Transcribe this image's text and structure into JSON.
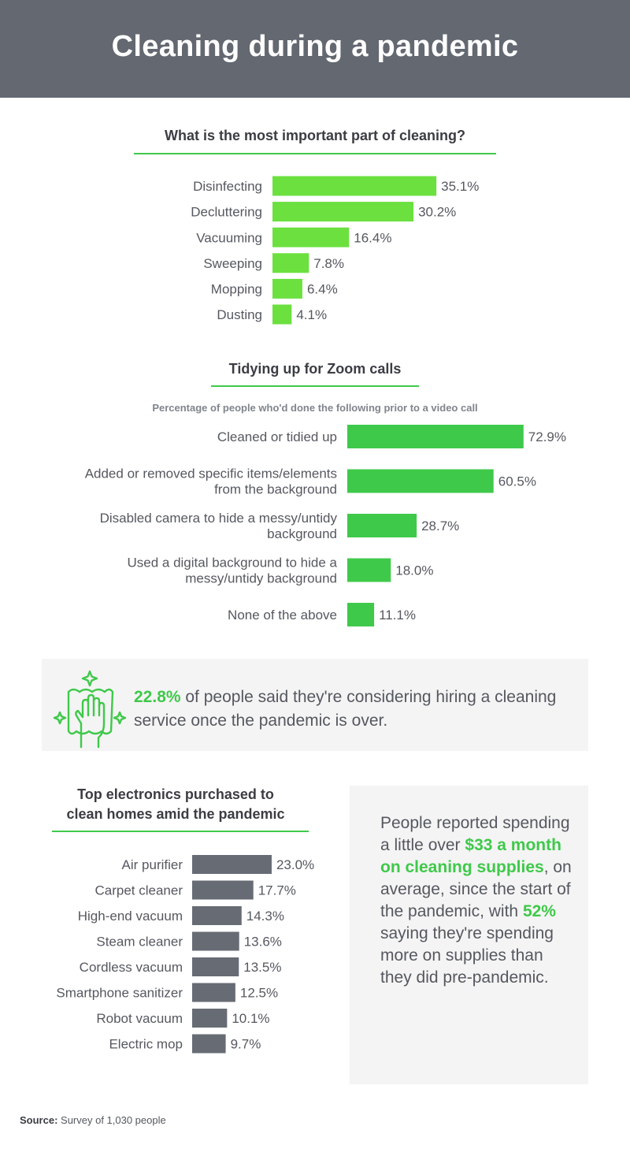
{
  "header": {
    "title": "Cleaning during a pandemic"
  },
  "chart_data": [
    {
      "type": "bar",
      "orientation": "horizontal",
      "title": "What is the most important part of cleaning?",
      "categories": [
        "Disinfecting",
        "Decluttering",
        "Vacuuming",
        "Sweeping",
        "Mopping",
        "Dusting"
      ],
      "values": [
        35.1,
        30.2,
        16.4,
        7.8,
        6.4,
        4.1
      ],
      "value_labels": [
        "35.1%",
        "30.2%",
        "16.4%",
        "7.8%",
        "6.4%",
        "4.1%"
      ],
      "unit": "%",
      "color": "#6be03f"
    },
    {
      "type": "bar",
      "orientation": "horizontal",
      "title": "Tidying up for Zoom calls",
      "subtitle": "Percentage of people who'd done the following prior to a video call",
      "categories": [
        "Cleaned or tidied up",
        "Added or removed specific items/elements from the background",
        "Disabled camera to hide a messy/untidy background",
        "Used a digital background to hide a messy/untidy background",
        "None of the above"
      ],
      "category_lines": [
        [
          "Cleaned or tidied up"
        ],
        [
          "Added or removed specific items/elements",
          "from the background"
        ],
        [
          "Disabled camera to hide a messy/untidy",
          "background"
        ],
        [
          "Used a digital background to hide a",
          "messy/untidy background"
        ],
        [
          "None of the above"
        ]
      ],
      "values": [
        72.9,
        60.5,
        28.7,
        18.0,
        11.1
      ],
      "value_labels": [
        "72.9%",
        "60.5%",
        "28.7%",
        "18.0%",
        "11.1%"
      ],
      "unit": "%",
      "color": "#3fc94a"
    },
    {
      "type": "bar",
      "orientation": "horizontal",
      "title": "Top electronics purchased to clean homes amid the pandemic",
      "title_lines": [
        "Top electronics purchased to",
        "clean homes amid the pandemic"
      ],
      "categories": [
        "Air purifier",
        "Carpet cleaner",
        "High-end vacuum",
        "Steam cleaner",
        "Cordless vacuum",
        "Smartphone sanitizer",
        "Robot vacuum",
        "Electric mop"
      ],
      "values": [
        23.0,
        17.7,
        14.3,
        13.6,
        13.5,
        12.5,
        10.1,
        9.7
      ],
      "value_labels": [
        "23.0%",
        "17.7%",
        "14.3%",
        "13.6%",
        "13.5%",
        "12.5%",
        "10.1%",
        "9.7%"
      ],
      "unit": "%",
      "color": "#676b74"
    }
  ],
  "callout": {
    "icon": "hand-cleaning-sparkle-icon",
    "stat": "22.8%",
    "text": " of people said they're considering hiring a cleaning service once the pandemic is over."
  },
  "side_box": {
    "part1": "People reported spending a little over ",
    "highlight1": "$33 a month on cleaning supplies",
    "part2": ", on average, since the start of the pandemic, with ",
    "highlight2": "52%",
    "part3": " saying they're spending more on supplies than they did pre-pandemic."
  },
  "source": {
    "label": "Source:",
    "text": " Survey of 1,030 people"
  },
  "colors": {
    "banner": "#636871",
    "accent": "#3fc94a",
    "bright_green": "#6be03f",
    "gray_bar": "#676b74",
    "panel": "#f4f4f4"
  }
}
